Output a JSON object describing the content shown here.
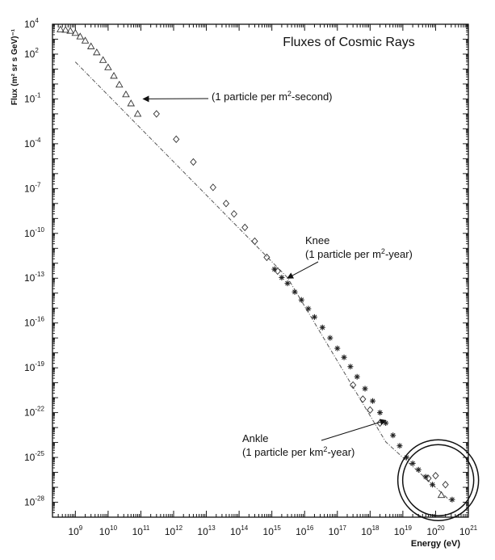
{
  "chart_data": {
    "type": "scatter",
    "title": "Fluxes of Cosmic Rays",
    "xlabel": "Energy (eV)",
    "ylabel": "Flux (m² sr s GeV)⁻¹",
    "x_scale": "log",
    "y_scale": "log",
    "xlim": [
      200000000.0,
      1e+21
    ],
    "ylim": [
      1e-29,
      10000.0
    ],
    "x_ticks": [
      {
        "base": "10",
        "exp": "9",
        "value": 1000000000.0
      },
      {
        "base": "10",
        "exp": "10",
        "value": 10000000000.0
      },
      {
        "base": "10",
        "exp": "11",
        "value": 100000000000.0
      },
      {
        "base": "10",
        "exp": "12",
        "value": 1000000000000.0
      },
      {
        "base": "10",
        "exp": "13",
        "value": 10000000000000.0
      },
      {
        "base": "10",
        "exp": "14",
        "value": 100000000000000.0
      },
      {
        "base": "10",
        "exp": "15",
        "value": 1000000000000000.0
      },
      {
        "base": "10",
        "exp": "16",
        "value": 1e+16
      },
      {
        "base": "10",
        "exp": "17",
        "value": 1e+17
      },
      {
        "base": "10",
        "exp": "18",
        "value": 1e+18
      },
      {
        "base": "10",
        "exp": "19",
        "value": 1e+19
      },
      {
        "base": "10",
        "exp": "20",
        "value": 1e+20
      },
      {
        "base": "10",
        "exp": "21",
        "value": 1e+21
      }
    ],
    "y_ticks": [
      {
        "base": "10",
        "exp": "4",
        "value": 10000.0
      },
      {
        "base": "10",
        "exp": "2",
        "value": 100.0
      },
      {
        "base": "10",
        "exp": "-1",
        "value": 0.1
      },
      {
        "base": "10",
        "exp": "-4",
        "value": 0.0001
      },
      {
        "base": "10",
        "exp": "-7",
        "value": 1e-07
      },
      {
        "base": "10",
        "exp": "-10",
        "value": 1e-10
      },
      {
        "base": "10",
        "exp": "-13",
        "value": 1e-13
      },
      {
        "base": "10",
        "exp": "-16",
        "value": 1e-16
      },
      {
        "base": "10",
        "exp": "-19",
        "value": 1e-19
      },
      {
        "base": "10",
        "exp": "-22",
        "value": 1e-22
      },
      {
        "base": "10",
        "exp": "-25",
        "value": 1e-25
      },
      {
        "base": "10",
        "exp": "-28",
        "value": 1e-28
      }
    ],
    "grid": false,
    "reference_line": {
      "style": "dash-dot",
      "x": [
        1000000000.0,
        3000000000000000.0,
        3e+18,
        3e+20
      ],
      "y": [
        30.0,
        1.1e-13,
        1.1e-24,
        1.1e-28
      ]
    },
    "series": [
      {
        "marker": "triangle",
        "points": [
          {
            "x": 350000000.0,
            "y": 4500
          },
          {
            "x": 500000000.0,
            "y": 4200
          },
          {
            "x": 700000000.0,
            "y": 3600
          },
          {
            "x": 1000000000.0,
            "y": 2600
          },
          {
            "x": 1400000000.0,
            "y": 1500
          },
          {
            "x": 2000000000.0,
            "y": 800
          },
          {
            "x": 3000000000.0,
            "y": 330
          },
          {
            "x": 4500000000.0,
            "y": 130
          },
          {
            "x": 7000000000.0,
            "y": 40
          },
          {
            "x": 10000000000.0,
            "y": 13
          },
          {
            "x": 15000000000.0,
            "y": 3.5
          },
          {
            "x": 22000000000.0,
            "y": 0.9
          },
          {
            "x": 35000000000.0,
            "y": 0.2
          },
          {
            "x": 50000000000.0,
            "y": 0.05
          },
          {
            "x": 80000000000.0,
            "y": 0.01
          },
          {
            "x": 1.5e+20,
            "y": 3e-28
          }
        ]
      },
      {
        "marker": "diamond",
        "points": [
          {
            "x": 300000000000.0,
            "y": 0.01
          },
          {
            "x": 1200000000000.0,
            "y": 0.0002
          },
          {
            "x": 4000000000000.0,
            "y": 6e-06
          },
          {
            "x": 16000000000000.0,
            "y": 1.2e-07
          },
          {
            "x": 40000000000000.0,
            "y": 1e-08
          },
          {
            "x": 70000000000000.0,
            "y": 2e-09
          },
          {
            "x": 150000000000000.0,
            "y": 2.5e-10
          },
          {
            "x": 300000000000000.0,
            "y": 3e-11
          },
          {
            "x": 700000000000000.0,
            "y": 2.5e-12
          },
          {
            "x": 1500000000000000.0,
            "y": 3e-13
          },
          {
            "x": 3e+17,
            "y": 7e-21
          },
          {
            "x": 6e+17,
            "y": 8e-22
          },
          {
            "x": 1e+18,
            "y": 1.5e-22
          },
          {
            "x": 2e+18,
            "y": 2e-23
          },
          {
            "x": 6e+19,
            "y": 4e-27
          },
          {
            "x": 1e+20,
            "y": 6e-27
          },
          {
            "x": 2e+20,
            "y": 1.5e-27
          }
        ]
      },
      {
        "marker": "star",
        "points": [
          {
            "x": 1200000000000000.0,
            "y": 4e-13
          },
          {
            "x": 2000000000000000.0,
            "y": 1.1e-13
          },
          {
            "x": 3000000000000000.0,
            "y": 4.5e-14
          },
          {
            "x": 5000000000000000.0,
            "y": 1.2e-14
          },
          {
            "x": 8000000000000000.0,
            "y": 3.5e-15
          },
          {
            "x": 1.3e+16,
            "y": 9e-16
          },
          {
            "x": 2e+16,
            "y": 2.5e-16
          },
          {
            "x": 3.5e+16,
            "y": 5e-17
          },
          {
            "x": 6e+16,
            "y": 1e-17
          },
          {
            "x": 1e+17,
            "y": 2e-18
          },
          {
            "x": 1.6e+17,
            "y": 5e-19
          },
          {
            "x": 2.5e+17,
            "y": 1.2e-19
          },
          {
            "x": 4e+17,
            "y": 2.5e-20
          },
          {
            "x": 7e+17,
            "y": 4e-21
          },
          {
            "x": 1.2e+18,
            "y": 6e-22
          },
          {
            "x": 2e+18,
            "y": 1e-22
          },
          {
            "x": 3e+18,
            "y": 2e-23
          },
          {
            "x": 5e+18,
            "y": 3e-24
          },
          {
            "x": 8e+18,
            "y": 6e-25
          },
          {
            "x": 1.3e+19,
            "y": 1e-25
          },
          {
            "x": 2e+19,
            "y": 4e-26
          },
          {
            "x": 3e+19,
            "y": 1.5e-26
          },
          {
            "x": 5e+19,
            "y": 5e-27
          },
          {
            "x": 8e+19,
            "y": 1.5e-27
          },
          {
            "x": 3.2e+20,
            "y": 1.5e-28
          }
        ]
      }
    ],
    "annotations": [
      {
        "lines": [
          [
            "(1 particle per m",
            "2",
            "-second)"
          ]
        ],
        "arrow_to": {
          "x": 100000000000.0,
          "y": 0.1
        }
      },
      {
        "lines": [
          [
            "Knee"
          ],
          [
            "(1 particle per m",
            "2",
            "-year)"
          ]
        ],
        "arrow_to": {
          "x": 3000000000000000.0,
          "y": 1e-13
        }
      },
      {
        "lines": [
          [
            "Ankle"
          ],
          [
            "(1 particle per km",
            "2",
            "-year)"
          ]
        ],
        "arrow_to": {
          "x": 3e+18,
          "y": 3e-23
        }
      }
    ],
    "highlight_circle": {
      "center": {
        "x": 1.2e+20,
        "y": 3e-27
      }
    }
  }
}
